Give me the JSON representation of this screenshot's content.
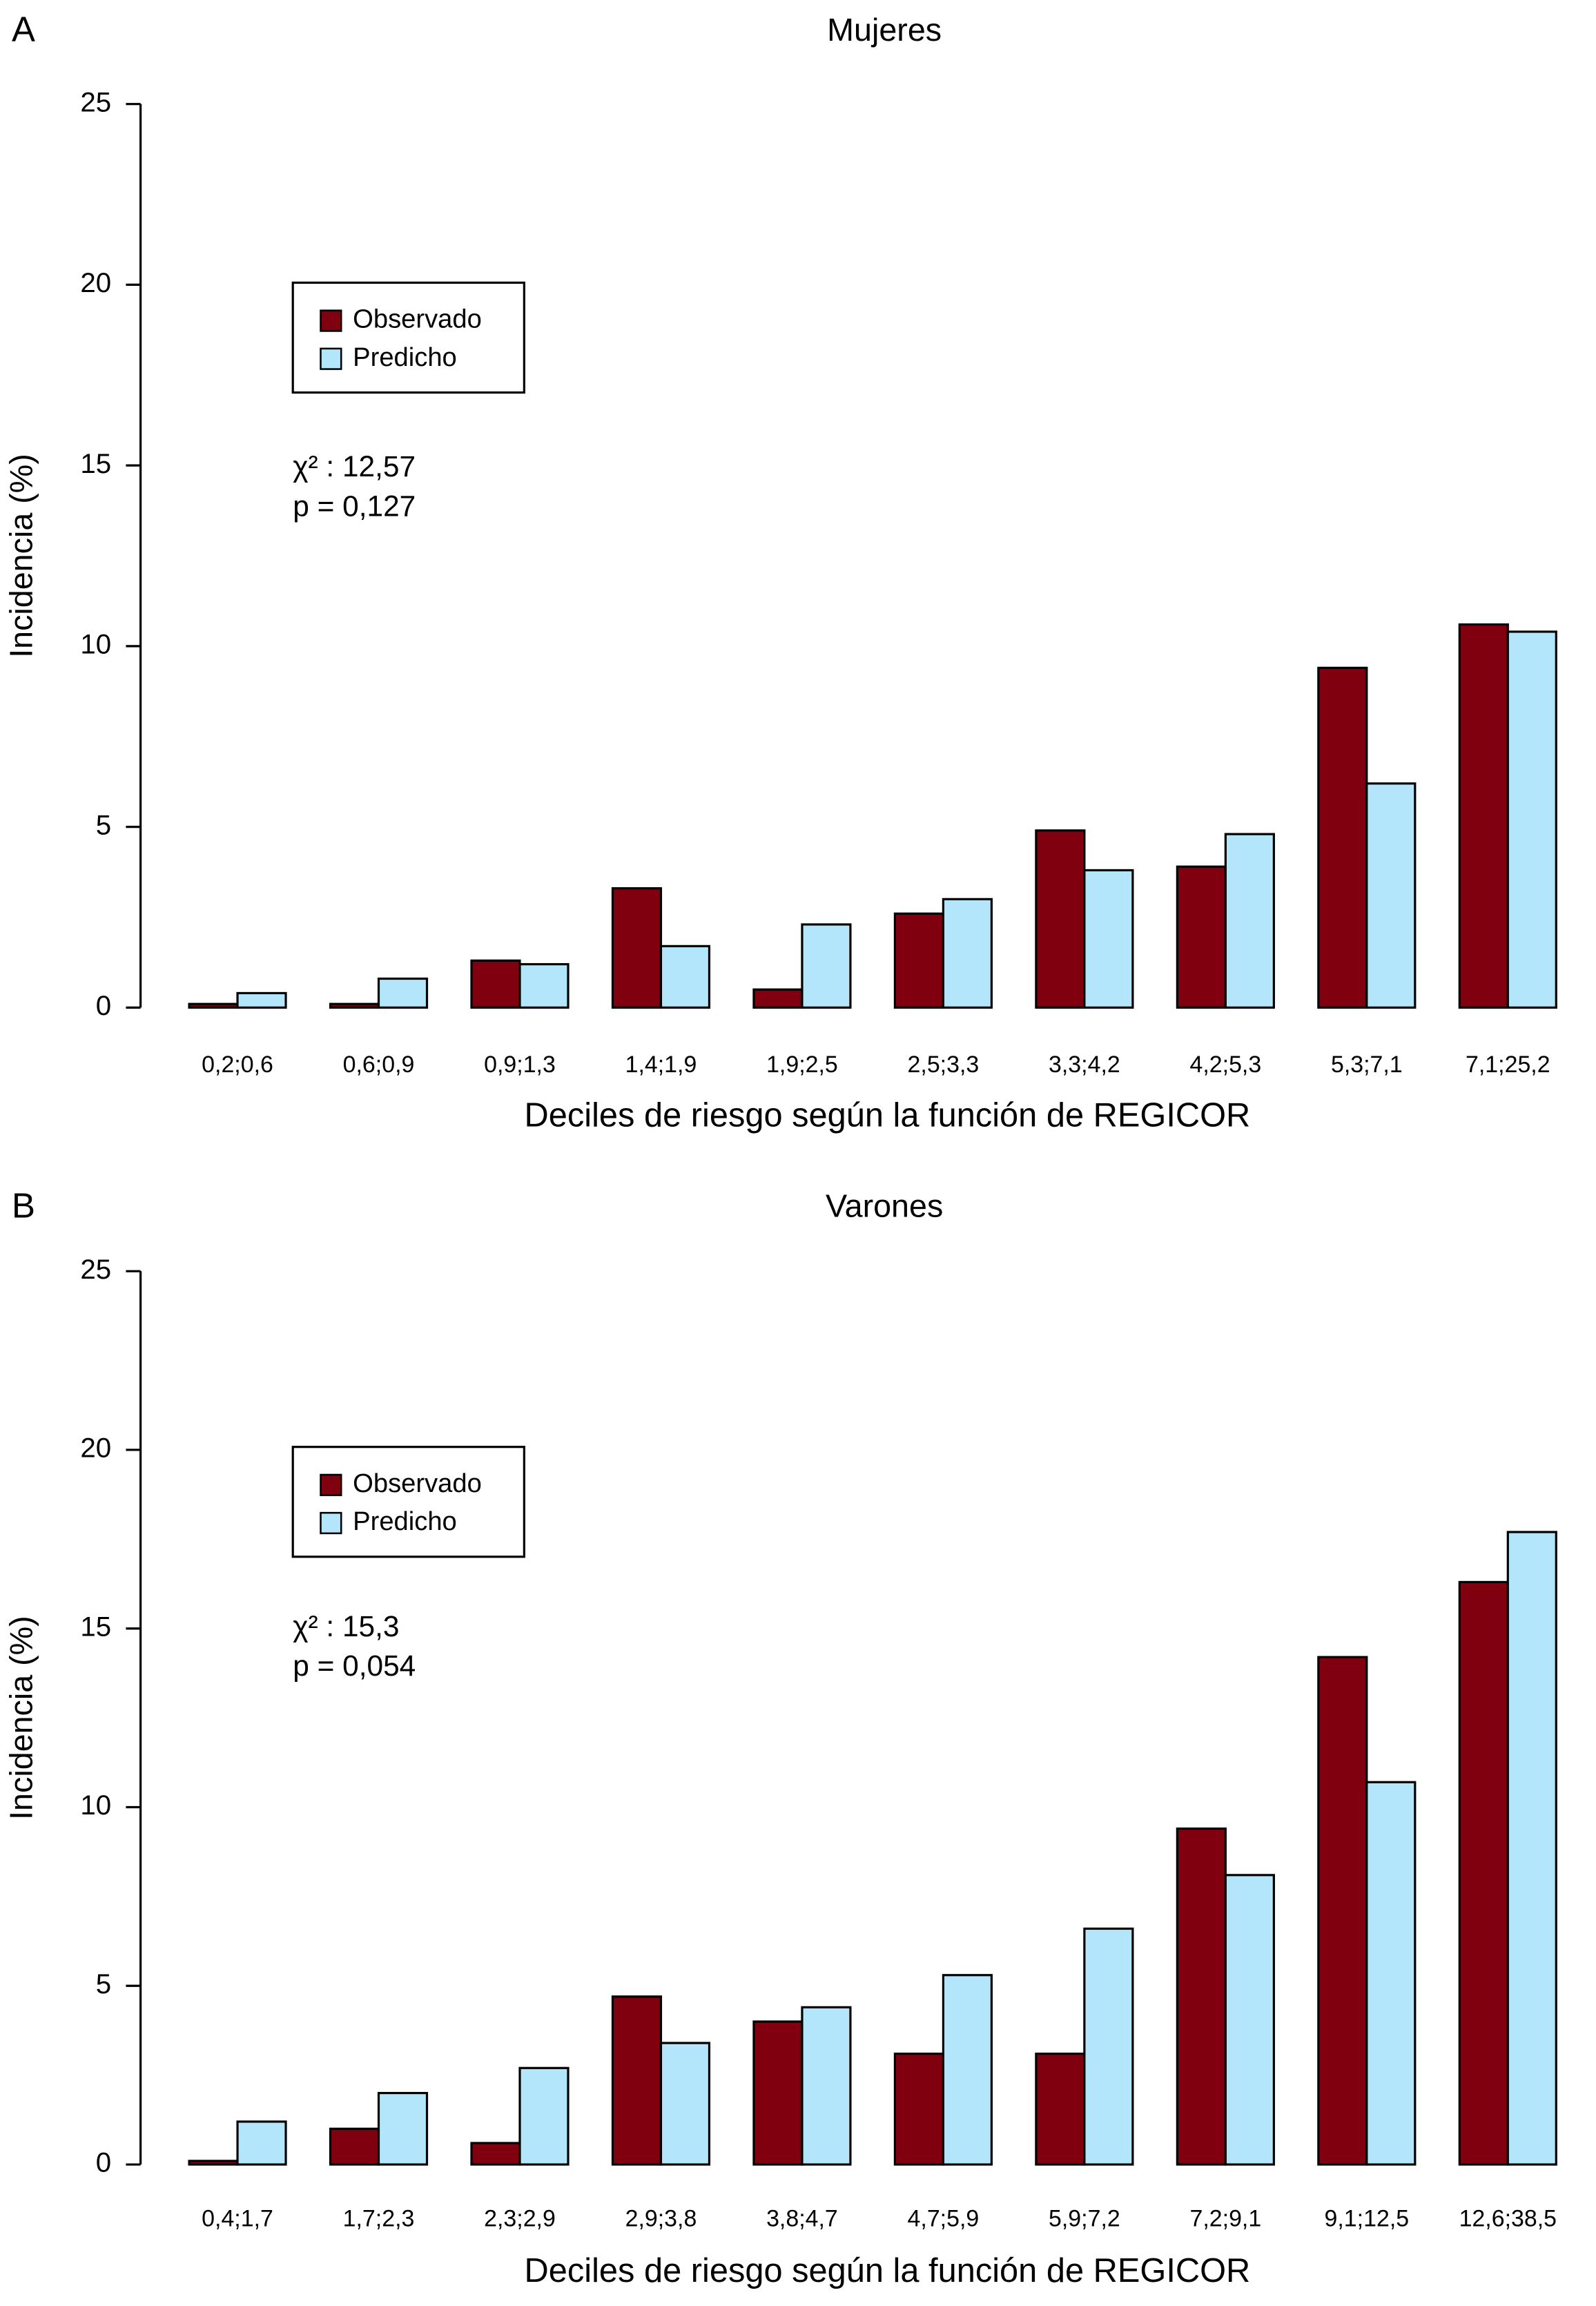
{
  "chart_data": [
    {
      "type": "bar",
      "panel": "A",
      "title": "Mujeres",
      "x_label": "Deciles de riesgo según la función de REGICOR",
      "y_label": "Incidencia (%)",
      "categories": [
        "0,2;0,6",
        "0,6;0,9",
        "0,9;1,3",
        "1,4;1,9",
        "1,9;2,5",
        "2,5;3,3",
        "3,3;4,2",
        "4,2;5,3",
        "5,3;7,1",
        "7,1;25,2"
      ],
      "series": [
        {
          "name": "Observado",
          "color": "#800010",
          "values": [
            0.1,
            0.1,
            1.3,
            3.3,
            0.5,
            2.6,
            4.9,
            3.9,
            9.4,
            10.6
          ]
        },
        {
          "name": "Predicho",
          "color": "#b3e5fb",
          "values": [
            0.4,
            0.8,
            1.2,
            1.7,
            2.3,
            3.0,
            3.8,
            4.8,
            6.2,
            10.4
          ]
        }
      ],
      "annotations": [
        "χ² : 12,57",
        "p = 0,127"
      ],
      "ylim": [
        0,
        25
      ],
      "yticks": [
        0,
        5,
        10,
        15,
        20,
        25
      ]
    },
    {
      "type": "bar",
      "panel": "B",
      "title": "Varones",
      "x_label": "Deciles de riesgo según la función de REGICOR",
      "y_label": "Incidencia (%)",
      "categories": [
        "0,4;1,7",
        "1,7;2,3",
        "2,3;2,9",
        "2,9;3,8",
        "3,8;4,7",
        "4,7;5,9",
        "5,9;7,2",
        "7,2;9,1",
        "9,1;12,5",
        "12,6;38,5"
      ],
      "series": [
        {
          "name": "Observado",
          "color": "#800010",
          "values": [
            0.1,
            1.0,
            0.6,
            4.7,
            4.0,
            3.1,
            3.1,
            9.4,
            14.2,
            16.3
          ]
        },
        {
          "name": "Predicho",
          "color": "#b3e5fb",
          "values": [
            1.2,
            2.0,
            2.7,
            3.4,
            4.4,
            5.3,
            6.6,
            8.1,
            10.7,
            17.7
          ]
        }
      ],
      "annotations": [
        "χ² : 15,3",
        "p = 0,054"
      ],
      "ylim": [
        0,
        25
      ],
      "yticks": [
        0,
        5,
        10,
        15,
        20,
        25
      ]
    }
  ]
}
